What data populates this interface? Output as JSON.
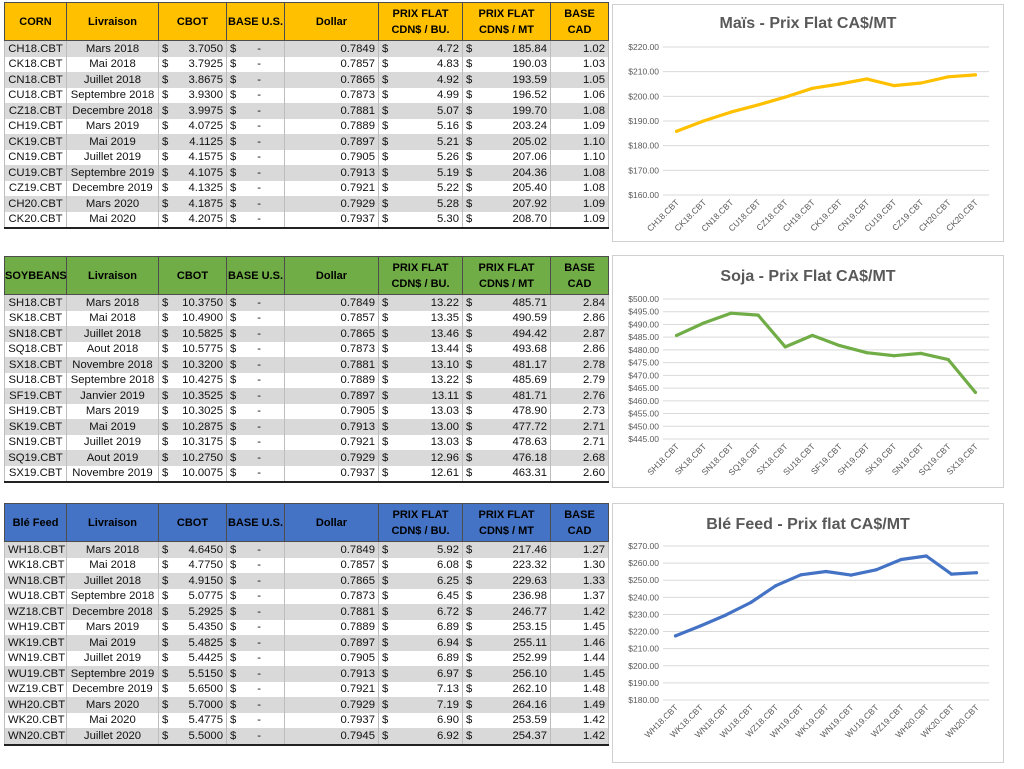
{
  "sections": [
    {
      "id": "corn",
      "headers": [
        "CORN",
        "Livraison",
        "CBOT",
        "BASE U.S.",
        "Dollar",
        "PRIX FLAT\nCDN$ / BU.",
        "PRIX FLAT\nCDN$ / MT",
        "BASE CAD"
      ],
      "header_color": "#ffc000",
      "rows": [
        [
          "CH18.CBT",
          "Mars 2018",
          "$",
          "3.7050",
          "$",
          "-",
          "0.7849",
          "$",
          "4.72",
          "$",
          "185.84",
          "1.02"
        ],
        [
          "CK18.CBT",
          "Mai 2018",
          "$",
          "3.7925",
          "$",
          "-",
          "0.7857",
          "$",
          "4.83",
          "$",
          "190.03",
          "1.03"
        ],
        [
          "CN18.CBT",
          "Juillet 2018",
          "$",
          "3.8675",
          "$",
          "-",
          "0.7865",
          "$",
          "4.92",
          "$",
          "193.59",
          "1.05"
        ],
        [
          "CU18.CBT",
          "Septembre 2018",
          "$",
          "3.9300",
          "$",
          "-",
          "0.7873",
          "$",
          "4.99",
          "$",
          "196.52",
          "1.06"
        ],
        [
          "CZ18.CBT",
          "Decembre 2018",
          "$",
          "3.9975",
          "$",
          "-",
          "0.7881",
          "$",
          "5.07",
          "$",
          "199.70",
          "1.08"
        ],
        [
          "CH19.CBT",
          "Mars 2019",
          "$",
          "4.0725",
          "$",
          "-",
          "0.7889",
          "$",
          "5.16",
          "$",
          "203.24",
          "1.09"
        ],
        [
          "CK19.CBT",
          "Mai 2019",
          "$",
          "4.1125",
          "$",
          "-",
          "0.7897",
          "$",
          "5.21",
          "$",
          "205.02",
          "1.10"
        ],
        [
          "CN19.CBT",
          "Juillet 2019",
          "$",
          "4.1575",
          "$",
          "-",
          "0.7905",
          "$",
          "5.26",
          "$",
          "207.06",
          "1.10"
        ],
        [
          "CU19.CBT",
          "Septembre 2019",
          "$",
          "4.1075",
          "$",
          "-",
          "0.7913",
          "$",
          "5.19",
          "$",
          "204.36",
          "1.08"
        ],
        [
          "CZ19.CBT",
          "Decembre 2019",
          "$",
          "4.1325",
          "$",
          "-",
          "0.7921",
          "$",
          "5.22",
          "$",
          "205.40",
          "1.08"
        ],
        [
          "CH20.CBT",
          "Mars 2020",
          "$",
          "4.1875",
          "$",
          "-",
          "0.7929",
          "$",
          "5.28",
          "$",
          "207.92",
          "1.09"
        ],
        [
          "CK20.CBT",
          "Mai 2020",
          "$",
          "4.2075",
          "$",
          "-",
          "0.7937",
          "$",
          "5.30",
          "$",
          "208.70",
          "1.09"
        ]
      ]
    },
    {
      "id": "soybeans",
      "headers": [
        "SOYBEANS",
        "Livraison",
        "CBOT",
        "BASE U.S.",
        "Dollar",
        "PRIX FLAT\nCDN$ / BU.",
        "PRIX FLAT\nCDN$ / MT",
        "BASE CAD"
      ],
      "header_color": "#70ad47",
      "rows": [
        [
          "SH18.CBT",
          "Mars 2018",
          "$",
          "10.3750",
          "$",
          "-",
          "0.7849",
          "$",
          "13.22",
          "$",
          "485.71",
          "2.84"
        ],
        [
          "SK18.CBT",
          "Mai 2018",
          "$",
          "10.4900",
          "$",
          "-",
          "0.7857",
          "$",
          "13.35",
          "$",
          "490.59",
          "2.86"
        ],
        [
          "SN18.CBT",
          "Juillet 2018",
          "$",
          "10.5825",
          "$",
          "-",
          "0.7865",
          "$",
          "13.46",
          "$",
          "494.42",
          "2.87"
        ],
        [
          "SQ18.CBT",
          "Aout 2018",
          "$",
          "10.5775",
          "$",
          "-",
          "0.7873",
          "$",
          "13.44",
          "$",
          "493.68",
          "2.86"
        ],
        [
          "SX18.CBT",
          "Novembre 2018",
          "$",
          "10.3200",
          "$",
          "-",
          "0.7881",
          "$",
          "13.10",
          "$",
          "481.17",
          "2.78"
        ],
        [
          "SU18.CBT",
          "Septembre 2018",
          "$",
          "10.4275",
          "$",
          "-",
          "0.7889",
          "$",
          "13.22",
          "$",
          "485.69",
          "2.79"
        ],
        [
          "SF19.CBT",
          "Janvier 2019",
          "$",
          "10.3525",
          "$",
          "-",
          "0.7897",
          "$",
          "13.11",
          "$",
          "481.71",
          "2.76"
        ],
        [
          "SH19.CBT",
          "Mars 2019",
          "$",
          "10.3025",
          "$",
          "-",
          "0.7905",
          "$",
          "13.03",
          "$",
          "478.90",
          "2.73"
        ],
        [
          "SK19.CBT",
          "Mai 2019",
          "$",
          "10.2875",
          "$",
          "-",
          "0.7913",
          "$",
          "13.00",
          "$",
          "477.72",
          "2.71"
        ],
        [
          "SN19.CBT",
          "Juillet 2019",
          "$",
          "10.3175",
          "$",
          "-",
          "0.7921",
          "$",
          "13.03",
          "$",
          "478.63",
          "2.71"
        ],
        [
          "SQ19.CBT",
          "Aout 2019",
          "$",
          "10.2750",
          "$",
          "-",
          "0.7929",
          "$",
          "12.96",
          "$",
          "476.18",
          "2.68"
        ],
        [
          "SX19.CBT",
          "Novembre 2019",
          "$",
          "10.0075",
          "$",
          "-",
          "0.7937",
          "$",
          "12.61",
          "$",
          "463.31",
          "2.60"
        ]
      ]
    },
    {
      "id": "wheat",
      "headers": [
        "Blé Feed",
        "Livraison",
        "CBOT",
        "BASE U.S.",
        "Dollar",
        "PRIX FLAT\nCDN$ / BU.",
        "PRIX FLAT\nCDN$ / MT",
        "BASE CAD"
      ],
      "header_color": "#4472c4",
      "rows": [
        [
          "WH18.CBT",
          "Mars 2018",
          "$",
          "4.6450",
          "$",
          "-",
          "0.7849",
          "$",
          "5.92",
          "$",
          "217.46",
          "1.27"
        ],
        [
          "WK18.CBT",
          "Mai 2018",
          "$",
          "4.7750",
          "$",
          "-",
          "0.7857",
          "$",
          "6.08",
          "$",
          "223.32",
          "1.30"
        ],
        [
          "WN18.CBT",
          "Juillet 2018",
          "$",
          "4.9150",
          "$",
          "-",
          "0.7865",
          "$",
          "6.25",
          "$",
          "229.63",
          "1.33"
        ],
        [
          "WU18.CBT",
          "Septembre 2018",
          "$",
          "5.0775",
          "$",
          "-",
          "0.7873",
          "$",
          "6.45",
          "$",
          "236.98",
          "1.37"
        ],
        [
          "WZ18.CBT",
          "Decembre 2018",
          "$",
          "5.2925",
          "$",
          "-",
          "0.7881",
          "$",
          "6.72",
          "$",
          "246.77",
          "1.42"
        ],
        [
          "WH19.CBT",
          "Mars 2019",
          "$",
          "5.4350",
          "$",
          "-",
          "0.7889",
          "$",
          "6.89",
          "$",
          "253.15",
          "1.45"
        ],
        [
          "WK19.CBT",
          "Mai 2019",
          "$",
          "5.4825",
          "$",
          "-",
          "0.7897",
          "$",
          "6.94",
          "$",
          "255.11",
          "1.46"
        ],
        [
          "WN19.CBT",
          "Juillet 2019",
          "$",
          "5.4425",
          "$",
          "-",
          "0.7905",
          "$",
          "6.89",
          "$",
          "252.99",
          "1.44"
        ],
        [
          "WU19.CBT",
          "Septembre 2019",
          "$",
          "5.5150",
          "$",
          "-",
          "0.7913",
          "$",
          "6.97",
          "$",
          "256.10",
          "1.45"
        ],
        [
          "WZ19.CBT",
          "Decembre 2019",
          "$",
          "5.6500",
          "$",
          "-",
          "0.7921",
          "$",
          "7.13",
          "$",
          "262.10",
          "1.48"
        ],
        [
          "WH20.CBT",
          "Mars 2020",
          "$",
          "5.7000",
          "$",
          "-",
          "0.7929",
          "$",
          "7.19",
          "$",
          "264.16",
          "1.49"
        ],
        [
          "WK20.CBT",
          "Mai 2020",
          "$",
          "5.4775",
          "$",
          "-",
          "0.7937",
          "$",
          "6.90",
          "$",
          "253.59",
          "1.42"
        ],
        [
          "WN20.CBT",
          "Juillet 2020",
          "$",
          "5.5000",
          "$",
          "-",
          "0.7945",
          "$",
          "6.92",
          "$",
          "254.37",
          "1.42"
        ]
      ]
    }
  ],
  "chart_data": [
    {
      "type": "line",
      "title": "Maïs - Prix Flat CA$/MT",
      "color": "#ffc000",
      "categories": [
        "CH18.CBT",
        "CK18.CBT",
        "CN18.CBT",
        "CU18.CBT",
        "CZ18.CBT",
        "CH19.CBT",
        "CK19.CBT",
        "CN19.CBT",
        "CU19.CBT",
        "CZ19.CBT",
        "CH20.CBT",
        "CK20.CBT"
      ],
      "values": [
        185.84,
        190.03,
        193.59,
        196.52,
        199.7,
        203.24,
        205.02,
        207.06,
        204.36,
        205.4,
        207.92,
        208.7
      ],
      "yticks": [
        "$160.00",
        "$170.00",
        "$180.00",
        "$190.00",
        "$200.00",
        "$210.00",
        "$220.00"
      ],
      "ylim": [
        160,
        220
      ],
      "grid": true
    },
    {
      "type": "line",
      "title": "Soja - Prix Flat CA$/MT",
      "color": "#70ad47",
      "categories": [
        "SH18.CBT",
        "SK18.CBT",
        "SN18.CBT",
        "SQ18.CBT",
        "SX18.CBT",
        "SU18.CBT",
        "SF19.CBT",
        "SH19.CBT",
        "SK19.CBT",
        "SN19.CBT",
        "SQ19.CBT",
        "SX19.CBT"
      ],
      "values": [
        485.71,
        490.59,
        494.42,
        493.68,
        481.17,
        485.69,
        481.71,
        478.9,
        477.72,
        478.63,
        476.18,
        463.31
      ],
      "yticks": [
        "$445.00",
        "$450.00",
        "$455.00",
        "$460.00",
        "$465.00",
        "$470.00",
        "$475.00",
        "$480.00",
        "$485.00",
        "$490.00",
        "$495.00",
        "$500.00"
      ],
      "ylim": [
        445,
        500
      ],
      "grid": true
    },
    {
      "type": "line",
      "title": "Blé Feed - Prix flat CA$/MT",
      "color": "#4472c4",
      "categories": [
        "WH18.CBT",
        "WK18.CBT",
        "WN18.CBT",
        "WU18.CBT",
        "WZ18.CBT",
        "WH19.CBT",
        "WK19.CBT",
        "WN19.CBT",
        "WU19.CBT",
        "WZ19.CBT",
        "WH20.CBT",
        "WK20.CBT",
        "WN20.CBT"
      ],
      "values": [
        217.46,
        223.32,
        229.63,
        236.98,
        246.77,
        253.15,
        255.11,
        252.99,
        256.1,
        262.1,
        264.16,
        253.59,
        254.37
      ],
      "yticks": [
        "$180.00",
        "$190.00",
        "$200.00",
        "$210.00",
        "$220.00",
        "$230.00",
        "$240.00",
        "$250.00",
        "$260.00",
        "$270.00"
      ],
      "ylim": [
        180,
        270
      ],
      "grid": true
    }
  ]
}
